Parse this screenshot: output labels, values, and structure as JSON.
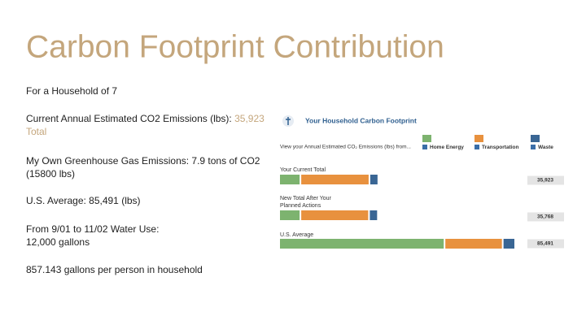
{
  "slide": {
    "title": "Carbon Footprint Contribution",
    "household": "For a Household of 7",
    "emissions_label": "Current Annual Estimated CO2 Emissions (lbs):",
    "emissions_value": "35,923",
    "emissions_unit": "Total",
    "own_emissions": "My Own Greenhouse Gas Emissions: 7.9 tons of CO2",
    "own_emissions_lbs": "(15800 lbs)",
    "us_average": "U.S. Average: 85,491 (lbs)",
    "water_period": "From 9/01 to 11/02 Water Use:",
    "water_use": "12,000 gallons",
    "per_person": "857.143 gallons per person in household"
  },
  "chart_data": {
    "type": "bar",
    "orientation": "horizontal",
    "stacked": true,
    "title": "Your Household Carbon Footprint",
    "subtitle": "View your Annual Estimated CO₂ Emissions (lbs) from...",
    "categories": [
      "Your Current Total",
      "New Total After Your Planned Actions",
      "U.S. Average"
    ],
    "series": [
      {
        "name": "Home Energy",
        "color": "#7db36f",
        "values": [
          7700,
          7700,
          59900
        ]
      },
      {
        "name": "Transportation",
        "color": "#e8913e",
        "values": [
          25000,
          24845,
          21070
        ]
      },
      {
        "name": "Waste",
        "color": "#3a6694",
        "values": [
          3223,
          3223,
          4521
        ]
      }
    ],
    "totals": [
      35923,
      35768,
      85491
    ],
    "total_labels": [
      "35,923",
      "35,768",
      "85,491"
    ]
  }
}
